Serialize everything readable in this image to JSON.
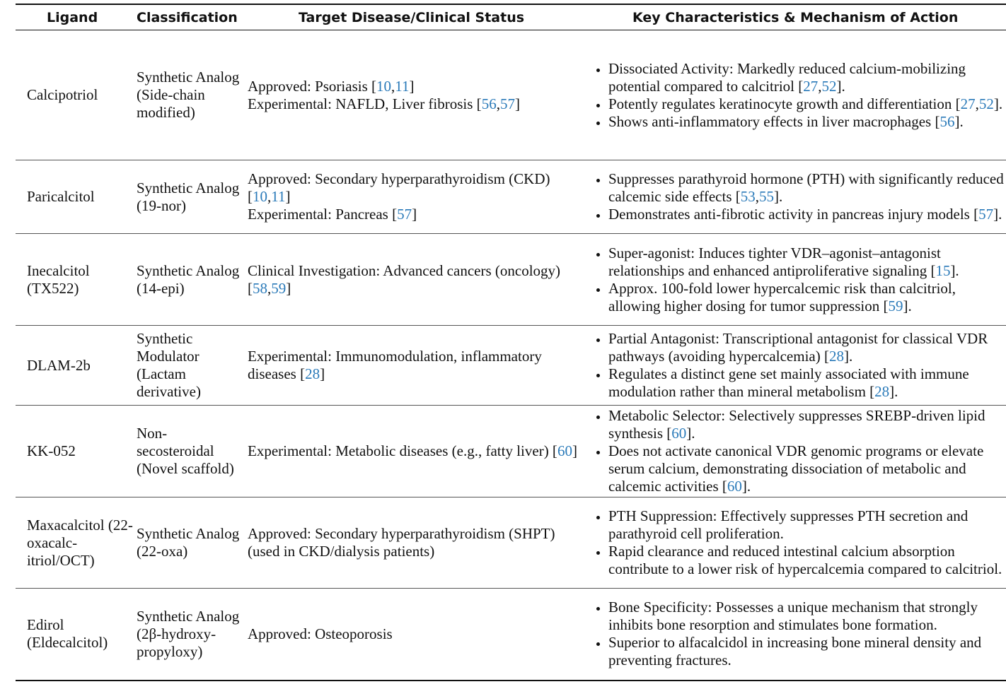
{
  "table": {
    "header": [
      "Ligand",
      "Classification",
      "Target Disease/Clinical Status",
      "Key Characteristics & Mechanism of Action"
    ],
    "rows": [
      {
        "ligand": "Calcipotriol",
        "classification": "Synthetic Analog (Side-chain modified)",
        "height": 184,
        "target": [
          [
            "Approved: Psoriasis [",
            {
              "ref": "10"
            },
            ",",
            {
              "ref": "11"
            },
            "]"
          ],
          [
            "Experimental: NAFLD, Liver fibrosis [",
            {
              "ref": "56"
            },
            ",",
            {
              "ref": "57"
            },
            "]"
          ]
        ],
        "characteristics": [
          [
            "Dissociated Activity: Markedly reduced calcium-mobilizing potential compared to calcitriol [",
            {
              "ref": "27"
            },
            ",",
            {
              "ref": "52"
            },
            "]."
          ],
          [
            "Potently regulates keratinocyte growth and differentiation [",
            {
              "ref": "27"
            },
            ",",
            {
              "ref": "52"
            },
            "]."
          ],
          [
            "Shows anti-inflammatory effects in liver macrophages [",
            {
              "ref": "56"
            },
            "]."
          ]
        ]
      },
      {
        "ligand": "Paricalcitol",
        "classification": "Synthetic Analog (19-nor)",
        "height": 104,
        "target": [
          [
            "Approved: Secondary hyperparathyroidism (CKD) [",
            {
              "ref": "10"
            },
            ",",
            {
              "ref": "11"
            },
            "]"
          ],
          [
            "Experimental: Pancreas [",
            {
              "ref": "57"
            },
            "]"
          ]
        ],
        "characteristics": [
          [
            "Suppresses parathyroid hormone (PTH) with significantly reduced calcemic side effects [",
            {
              "ref": "53"
            },
            ",",
            {
              "ref": "55"
            },
            "]."
          ],
          [
            "Demonstrates anti-fibrotic activity in pancreas injury models [",
            {
              "ref": "57"
            },
            "]."
          ]
        ]
      },
      {
        "ligand": "Inecalcitol (TX522)",
        "classification": "Synthetic Analog (14-epi)",
        "height": 130,
        "target": [
          [
            "Clinical Investigation: Advanced cancers (oncology) [",
            {
              "ref": "58"
            },
            ",",
            {
              "ref": "59"
            },
            "]"
          ]
        ],
        "characteristics": [
          [
            "Super-agonist: Induces tighter VDR–agonist–antagonist relationships and enhanced antiproliferative signaling [",
            {
              "ref": "15"
            },
            "]."
          ],
          [
            "Approx. 100-fold lower hypercalcemic risk than calcitriol, allowing higher dosing for tumor suppression [",
            {
              "ref": "59"
            },
            "]."
          ]
        ]
      },
      {
        "ligand": "DLAM-2b",
        "classification": "Synthetic Modulator (Lactam derivative)",
        "height": 113,
        "target": [
          [
            "Experimental: Immunomodulation, inflammatory diseases [",
            {
              "ref": "28"
            },
            "]"
          ]
        ],
        "characteristics": [
          [
            "Partial Antagonist: Transcriptional antagonist for classical VDR pathways (avoiding hypercalcemia) [",
            {
              "ref": "28"
            },
            "]."
          ],
          [
            "Regulates a distinct gene set mainly associated with immune modulation rather than mineral metabolism [",
            {
              "ref": "28"
            },
            "]."
          ]
        ]
      },
      {
        "ligand": "KK-052",
        "classification": "Non-secosteroidal (Novel scaffold)",
        "height": 130,
        "target": [
          [
            "Experimental: Metabolic diseases (e.g., fatty liver) [",
            {
              "ref": "60"
            },
            "]"
          ]
        ],
        "characteristics": [
          [
            "Metabolic Selector: Selectively suppresses SREBP-driven lipid synthesis [",
            {
              "ref": "60"
            },
            "]."
          ],
          [
            "Does not activate canonical VDR genomic programs or elevate serum calcium, demonstrating dissociation of metabolic and calcemic activities [",
            {
              "ref": "60"
            },
            "]."
          ]
        ]
      },
      {
        "ligand": "Maxacalcitol (22-oxacalc­itriol/OCT)",
        "classification": "Synthetic Analog (22-oxa)",
        "height": 129,
        "target": [
          [
            "Approved: Secondary hyperparathyroidism (SHPT) (used in CKD/dialysis patients)"
          ]
        ],
        "characteristics": [
          [
            "PTH Suppression: Effectively suppresses PTH secretion and parathyroid cell proliferation."
          ],
          [
            "Rapid clearance and reduced intestinal calcium absorption contribute to a lower risk of hypercalcemia compared to calcitriol."
          ]
        ]
      },
      {
        "ligand": "Edirol (Eldecalcitol)",
        "classification": "Synthetic Analog (2β-hydroxy-propyloxy)",
        "height": 130,
        "target": [
          [
            "Approved: Osteoporosis"
          ]
        ],
        "characteristics": [
          [
            "Bone Specificity: Possesses a unique mechanism that strongly inhibits bone resorption and stimulates bone formation."
          ],
          [
            "Superior to alfacalcidol in increasing bone mineral density and preventing fractures."
          ]
        ]
      }
    ]
  }
}
